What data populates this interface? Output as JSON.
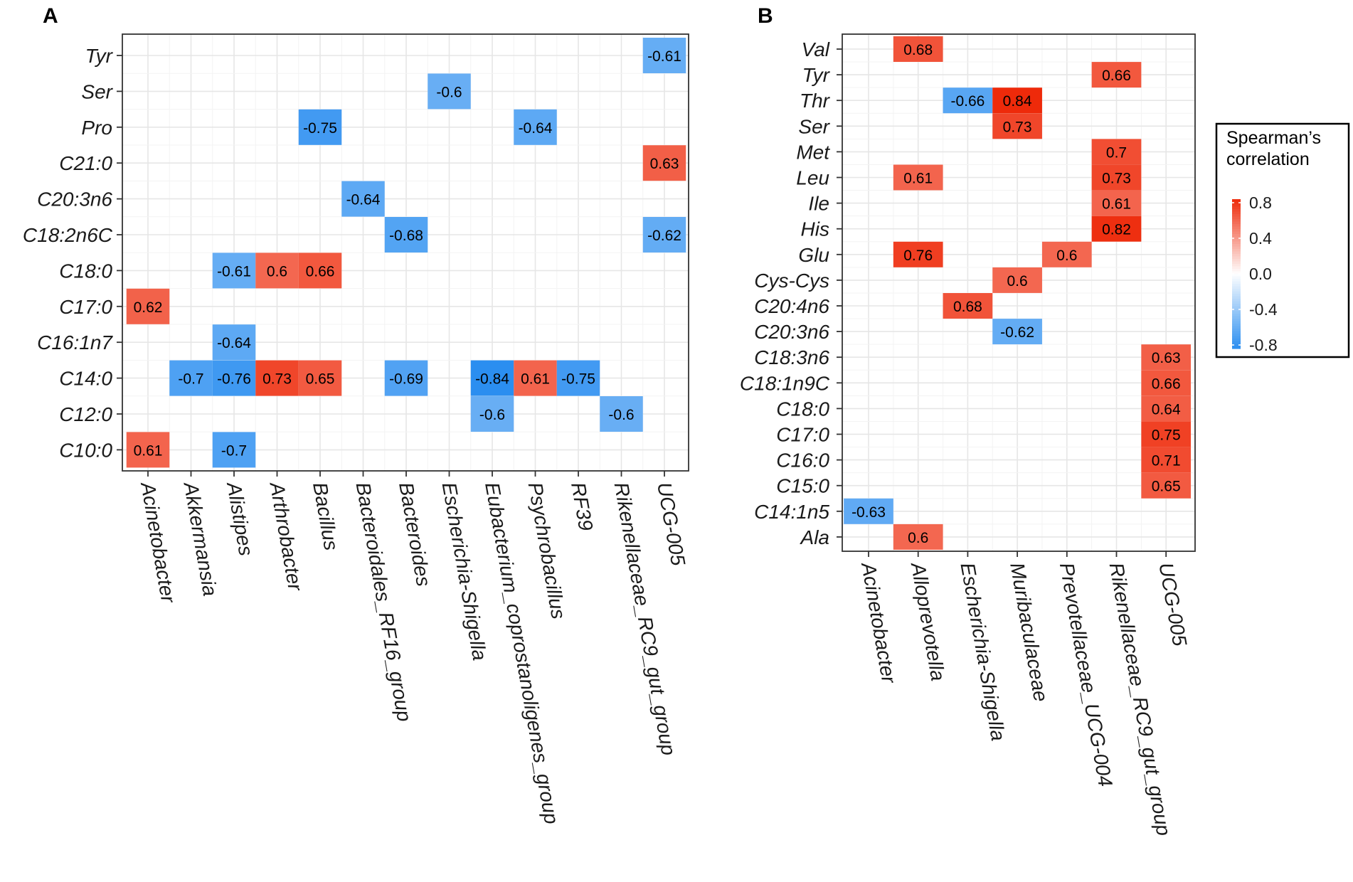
{
  "chart_data": [
    {
      "panel": "A",
      "type": "heatmap",
      "x_categories": [
        "Acinetobacter",
        "Akkermansia",
        "Alistipes",
        "Arthrobacter",
        "Bacillus",
        "Bacteroidales_RF16_group",
        "Bacteroides",
        "Escherichia-Shigella",
        "Eubacterium_coprostanoligenes_group",
        "Psychrobacillus",
        "RF39",
        "Rikenellaceae_RC9_gut_group",
        "UCG-005"
      ],
      "y_categories": [
        "Tyr",
        "Ser",
        "Pro",
        "C21:0",
        "C20:3n6",
        "C18:2n6C",
        "C18:0",
        "C17:0",
        "C16:1n7",
        "C14:0",
        "C12:0",
        "C10:0"
      ],
      "cells": [
        {
          "x": "UCG-005",
          "y": "Tyr",
          "value": -0.61,
          "label": "-0.61"
        },
        {
          "x": "Escherichia-Shigella",
          "y": "Ser",
          "value": -0.6,
          "label": "-0.6"
        },
        {
          "x": "Bacillus",
          "y": "Pro",
          "value": -0.75,
          "label": "-0.75"
        },
        {
          "x": "Psychrobacillus",
          "y": "Pro",
          "value": -0.64,
          "label": "-0.64"
        },
        {
          "x": "UCG-005",
          "y": "C21:0",
          "value": 0.63,
          "label": "0.63"
        },
        {
          "x": "Bacteroidales_RF16_group",
          "y": "C20:3n6",
          "value": -0.64,
          "label": "-0.64"
        },
        {
          "x": "Bacteroides",
          "y": "C18:2n6C",
          "value": -0.68,
          "label": "-0.68"
        },
        {
          "x": "UCG-005",
          "y": "C18:2n6C",
          "value": -0.62,
          "label": "-0.62"
        },
        {
          "x": "Alistipes",
          "y": "C18:0",
          "value": -0.61,
          "label": "-0.61"
        },
        {
          "x": "Arthrobacter",
          "y": "C18:0",
          "value": 0.6,
          "label": "0.6"
        },
        {
          "x": "Bacillus",
          "y": "C18:0",
          "value": 0.66,
          "label": "0.66"
        },
        {
          "x": "Acinetobacter",
          "y": "C17:0",
          "value": 0.62,
          "label": "0.62"
        },
        {
          "x": "Alistipes",
          "y": "C16:1n7",
          "value": -0.64,
          "label": "-0.64"
        },
        {
          "x": "Akkermansia",
          "y": "C14:0",
          "value": -0.7,
          "label": "-0.7"
        },
        {
          "x": "Alistipes",
          "y": "C14:0",
          "value": -0.76,
          "label": "-0.76"
        },
        {
          "x": "Arthrobacter",
          "y": "C14:0",
          "value": 0.73,
          "label": "0.73"
        },
        {
          "x": "Bacillus",
          "y": "C14:0",
          "value": 0.65,
          "label": "0.65"
        },
        {
          "x": "Bacteroides",
          "y": "C14:0",
          "value": -0.69,
          "label": "-0.69"
        },
        {
          "x": "Eubacterium_coprostanoligenes_group",
          "y": "C14:0",
          "value": -0.84,
          "label": "-0.84"
        },
        {
          "x": "Psychrobacillus",
          "y": "C14:0",
          "value": 0.61,
          "label": "0.61"
        },
        {
          "x": "RF39",
          "y": "C14:0",
          "value": -0.75,
          "label": "-0.75"
        },
        {
          "x": "Eubacterium_coprostanoligenes_group",
          "y": "C12:0",
          "value": -0.6,
          "label": "-0.6"
        },
        {
          "x": "Rikenellaceae_RC9_gut_group",
          "y": "C12:0",
          "value": -0.6,
          "label": "-0.6"
        },
        {
          "x": "Acinetobacter",
          "y": "C10:0",
          "value": 0.61,
          "label": "0.61"
        },
        {
          "x": "Alistipes",
          "y": "C10:0",
          "value": -0.7,
          "label": "-0.7"
        }
      ]
    },
    {
      "panel": "B",
      "type": "heatmap",
      "x_categories": [
        "Acinetobacter",
        "Alloprevotella",
        "Escherichia-Shigella",
        "Muribaculaceae",
        "Prevotellaceae_UCG-004",
        "Rikenellaceae_RC9_gut_group",
        "UCG-005"
      ],
      "y_categories": [
        "Val",
        "Tyr",
        "Thr",
        "Ser",
        "Met",
        "Leu",
        "Ile",
        "His",
        "Glu",
        "Cys-Cys",
        "C20:4n6",
        "C20:3n6",
        "C18:3n6",
        "C18:1n9C",
        "C18:0",
        "C17:0",
        "C16:0",
        "C15:0",
        "C14:1n5",
        "Ala"
      ],
      "cells": [
        {
          "x": "Alloprevotella",
          "y": "Val",
          "value": 0.68,
          "label": "0.68"
        },
        {
          "x": "Rikenellaceae_RC9_gut_group",
          "y": "Tyr",
          "value": 0.66,
          "label": "0.66"
        },
        {
          "x": "Escherichia-Shigella",
          "y": "Thr",
          "value": -0.66,
          "label": "-0.66"
        },
        {
          "x": "Muribaculaceae",
          "y": "Thr",
          "value": 0.84,
          "label": "0.84"
        },
        {
          "x": "Muribaculaceae",
          "y": "Ser",
          "value": 0.73,
          "label": "0.73"
        },
        {
          "x": "Rikenellaceae_RC9_gut_group",
          "y": "Met",
          "value": 0.7,
          "label": "0.7"
        },
        {
          "x": "Alloprevotella",
          "y": "Leu",
          "value": 0.61,
          "label": "0.61"
        },
        {
          "x": "Rikenellaceae_RC9_gut_group",
          "y": "Leu",
          "value": 0.73,
          "label": "0.73"
        },
        {
          "x": "Rikenellaceae_RC9_gut_group",
          "y": "Ile",
          "value": 0.61,
          "label": "0.61"
        },
        {
          "x": "Rikenellaceae_RC9_gut_group",
          "y": "His",
          "value": 0.82,
          "label": "0.82"
        },
        {
          "x": "Alloprevotella",
          "y": "Glu",
          "value": 0.76,
          "label": "0.76"
        },
        {
          "x": "Prevotellaceae_UCG-004",
          "y": "Glu",
          "value": 0.6,
          "label": "0.6"
        },
        {
          "x": "Muribaculaceae",
          "y": "Cys-Cys",
          "value": 0.6,
          "label": "0.6"
        },
        {
          "x": "Escherichia-Shigella",
          "y": "C20:4n6",
          "value": 0.68,
          "label": "0.68"
        },
        {
          "x": "Muribaculaceae",
          "y": "C20:3n6",
          "value": -0.62,
          "label": "-0.62"
        },
        {
          "x": "UCG-005",
          "y": "C18:3n6",
          "value": 0.63,
          "label": "0.63"
        },
        {
          "x": "UCG-005",
          "y": "C18:1n9C",
          "value": 0.66,
          "label": "0.66"
        },
        {
          "x": "UCG-005",
          "y": "C18:0",
          "value": 0.64,
          "label": "0.64"
        },
        {
          "x": "UCG-005",
          "y": "C17:0",
          "value": 0.75,
          "label": "0.75"
        },
        {
          "x": "UCG-005",
          "y": "C16:0",
          "value": 0.71,
          "label": "0.71"
        },
        {
          "x": "UCG-005",
          "y": "C15:0",
          "value": 0.65,
          "label": "0.65"
        },
        {
          "x": "Acinetobacter",
          "y": "C14:1n5",
          "value": -0.63,
          "label": "-0.63"
        },
        {
          "x": "Alloprevotella",
          "y": "Ala",
          "value": 0.6,
          "label": "0.6"
        }
      ]
    }
  ],
  "legend": {
    "title_line1": "Spearman’s",
    "title_line2": "correlation",
    "ticks": [
      "0.8",
      "0.4",
      "0.0",
      "-0.4",
      "-0.8"
    ],
    "tick_values": [
      0.8,
      0.4,
      0.0,
      -0.4,
      -0.8
    ],
    "range": [
      -0.84,
      0.84
    ],
    "colors": {
      "low": "#2b8ef0",
      "mid": "#ffffff",
      "high": "#ee2a0a"
    }
  },
  "panel_labels": [
    "A",
    "B"
  ]
}
